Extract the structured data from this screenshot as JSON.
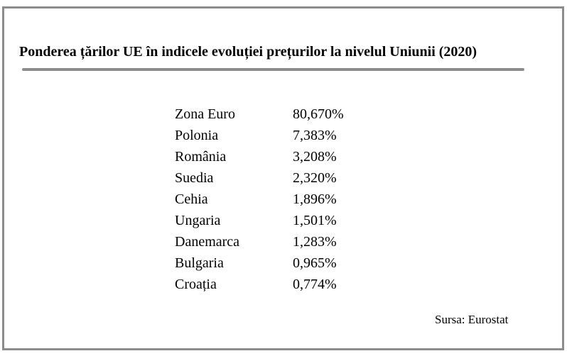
{
  "title": "Ponderea țărilor UE în indicele evoluției prețurilor la nivelul Uniunii (2020)",
  "source": "Sursa: Eurostat",
  "colors": {
    "frame": "#8c8c8c",
    "rule": "#8c8c8c",
    "text": "#000000",
    "background": "#ffffff"
  },
  "chart_data": {
    "type": "table",
    "title": "Ponderea țărilor UE în indicele evoluției prețurilor la nivelul Uniunii (2020)",
    "rows": [
      {
        "name": "Zona Euro",
        "value": "80,670%"
      },
      {
        "name": "Polonia",
        "value": "7,383%"
      },
      {
        "name": "România",
        "value": "3,208%"
      },
      {
        "name": "Suedia",
        "value": "2,320%"
      },
      {
        "name": "Cehia",
        "value": "1,896%"
      },
      {
        "name": "Ungaria",
        "value": "1,501%"
      },
      {
        "name": "Danemarca",
        "value": "1,283%"
      },
      {
        "name": "Bulgaria",
        "value": "0,965%"
      },
      {
        "name": "Croația",
        "value": "0,774%"
      }
    ]
  }
}
